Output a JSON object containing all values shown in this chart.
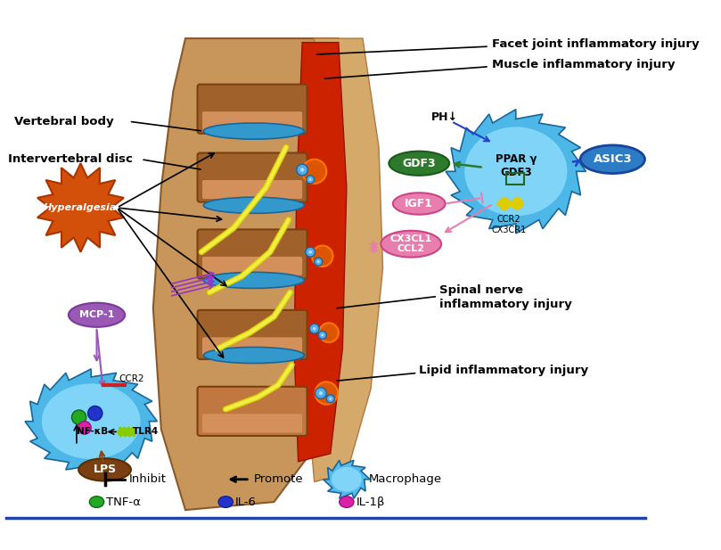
{
  "bg_color": "#ffffff",
  "title": "",
  "fig_width": 8.09,
  "fig_height": 6.17,
  "labels": {
    "vertebral_body": "Vertebral body",
    "intervertebral_disc": "Intervertebral disc",
    "hyperalgesia": "Hyperalgesia",
    "facet_joint": "Facet joint inflammatory injury",
    "muscle_injury": "Muscle inflammatory injury",
    "spinal_nerve": "Spinal nerve\ninflammatory injury",
    "lipid_injury": "Lipid inflammatory injury",
    "ph": "PH↓",
    "gdf3_oval": "GDF3",
    "igf1": "IGF1",
    "cx3cl1": "CX3CL1\nCCL2",
    "ppar": "PPAR γ\nGDF3",
    "asic3": "ASIC3",
    "ccr2_cx3cr1": "CCR2\nCX3CR1",
    "mcp1": "MCP-1",
    "ccr2_receptor": "CCR2",
    "nf_kb": "NF-κB",
    "tlr4": "TLR4",
    "lps": "LPS",
    "inhibit": "Inhibit",
    "promote": "Promote",
    "macrophage": "Macrophage",
    "tnf": "TNF-α",
    "il6": "IL-6",
    "il1b": "IL-1β"
  },
  "colors": {
    "hyperalgesia_fill": "#d2500a",
    "hyperalgesia_text": "#ffffff",
    "gdf3_oval_fill": "#2d7a2d",
    "igf1_fill": "#e87ead",
    "cx3cl1_fill": "#e87ead",
    "ppar_fill": "#4db8e8",
    "asic3_fill": "#2b7cc4",
    "mcp1_fill": "#9b59b6",
    "mcp1_text": "#ffffff",
    "lps_fill": "#7b4012",
    "lps_text": "#ffffff",
    "macrophage_left_fill": "#4db8e8",
    "macrophage_right_fill": "#4db8e8",
    "arrow_black": "#000000",
    "arrow_green": "#2d7a2d",
    "arrow_blue": "#2244cc",
    "arrow_pink": "#e87ead",
    "arrow_purple": "#9b59b6",
    "arrow_brown": "#8B4513",
    "tnf_color": "#22aa22",
    "il6_color": "#2233cc",
    "il1b_color": "#dd22aa",
    "receptor_red": "#cc2222",
    "tlr4_green": "#44aa44"
  }
}
